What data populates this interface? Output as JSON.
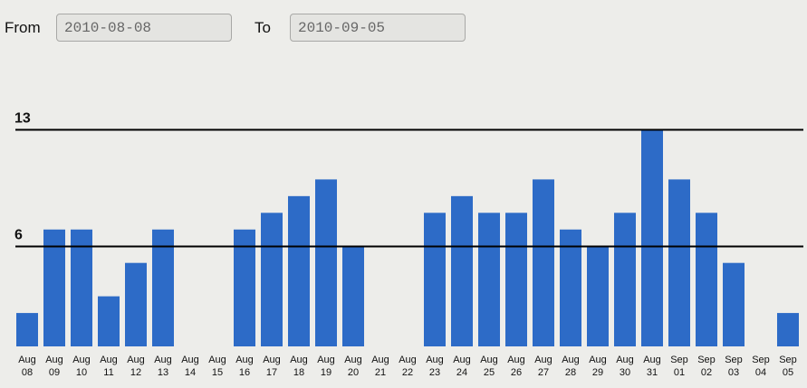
{
  "filters": {
    "from_label": "From",
    "from_value": "2010-08-08",
    "to_label": "To",
    "to_value": "2010-09-05"
  },
  "chart_data": {
    "type": "bar",
    "x": [
      "2010-08-08",
      "2010-08-09",
      "2010-08-10",
      "2010-08-11",
      "2010-08-12",
      "2010-08-13",
      "2010-08-14",
      "2010-08-15",
      "2010-08-16",
      "2010-08-17",
      "2010-08-18",
      "2010-08-19",
      "2010-08-20",
      "2010-08-21",
      "2010-08-22",
      "2010-08-23",
      "2010-08-24",
      "2010-08-25",
      "2010-08-26",
      "2010-08-27",
      "2010-08-28",
      "2010-08-29",
      "2010-08-30",
      "2010-08-31",
      "2010-09-01",
      "2010-09-02",
      "2010-09-03",
      "2010-09-04",
      "2010-09-05"
    ],
    "tick_labels": [
      [
        "Aug",
        "08"
      ],
      [
        "Aug",
        "09"
      ],
      [
        "Aug",
        "10"
      ],
      [
        "Aug",
        "11"
      ],
      [
        "Aug",
        "12"
      ],
      [
        "Aug",
        "13"
      ],
      [
        "Aug",
        "14"
      ],
      [
        "Aug",
        "15"
      ],
      [
        "Aug",
        "16"
      ],
      [
        "Aug",
        "17"
      ],
      [
        "Aug",
        "18"
      ],
      [
        "Aug",
        "19"
      ],
      [
        "Aug",
        "20"
      ],
      [
        "Aug",
        "21"
      ],
      [
        "Aug",
        "22"
      ],
      [
        "Aug",
        "23"
      ],
      [
        "Aug",
        "24"
      ],
      [
        "Aug",
        "25"
      ],
      [
        "Aug",
        "26"
      ],
      [
        "Aug",
        "27"
      ],
      [
        "Aug",
        "28"
      ],
      [
        "Aug",
        "29"
      ],
      [
        "Aug",
        "30"
      ],
      [
        "Aug",
        "31"
      ],
      [
        "Sep",
        "01"
      ],
      [
        "Sep",
        "02"
      ],
      [
        "Sep",
        "03"
      ],
      [
        "Sep",
        "04"
      ],
      [
        "Sep",
        "05"
      ]
    ],
    "values": [
      2,
      7,
      7,
      3,
      5,
      7,
      0,
      0,
      7,
      8,
      9,
      10,
      6,
      0,
      0,
      8,
      9,
      8,
      8,
      10,
      7,
      6,
      8,
      13,
      10,
      8,
      5,
      0,
      2
    ],
    "reference_lines": [
      {
        "value": 13,
        "label": "13"
      },
      {
        "value": 6,
        "label": "6"
      }
    ],
    "ylim": [
      0,
      13
    ],
    "bar_color": "#2d6bc7",
    "line_color": "#000000",
    "grid": false,
    "title": "",
    "xlabel": "",
    "ylabel": ""
  }
}
